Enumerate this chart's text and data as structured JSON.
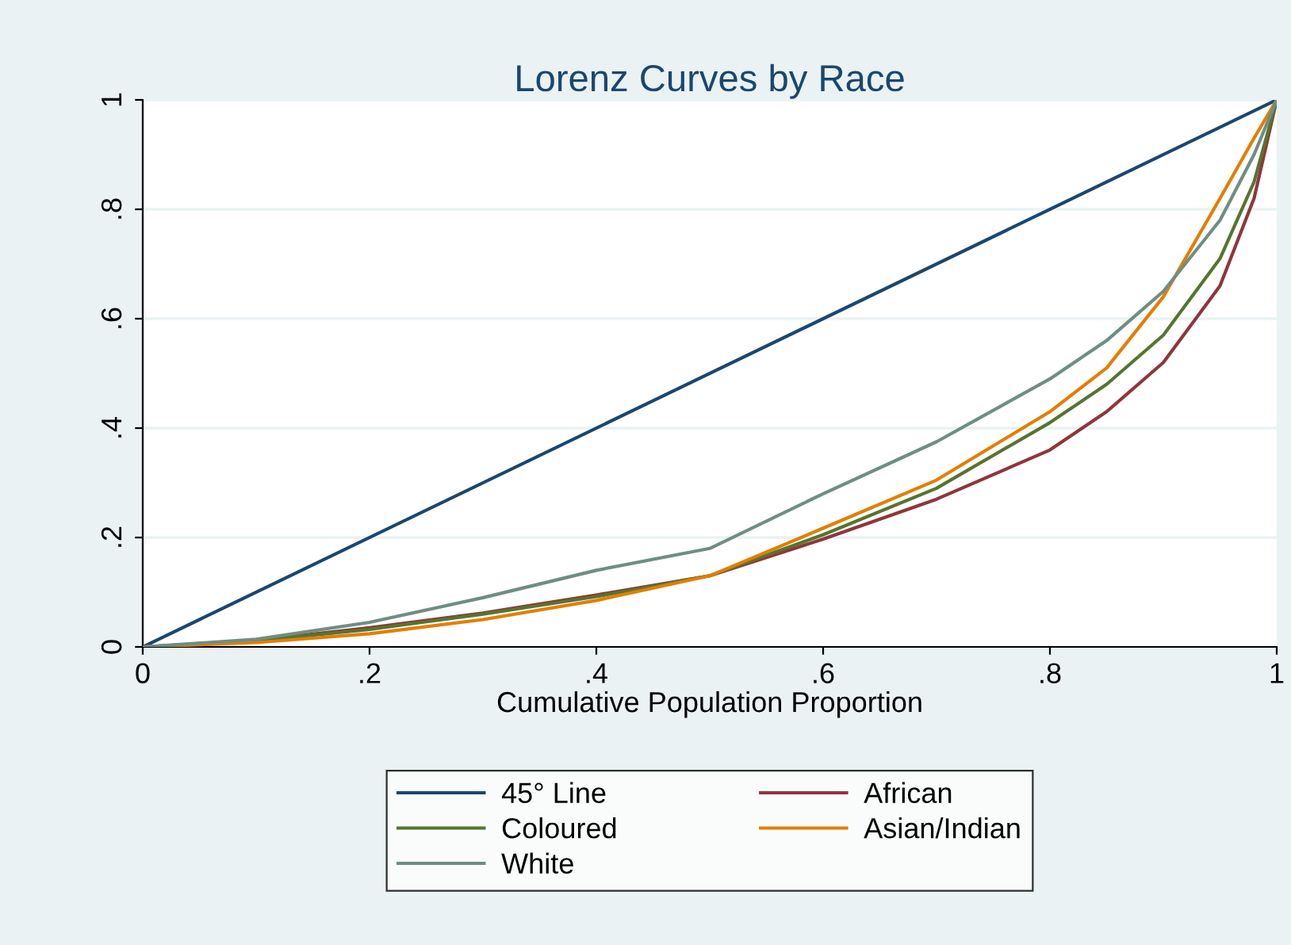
{
  "chart_data": {
    "type": "line",
    "title": "Lorenz Curves by Race",
    "xlabel": "Cumulative Population Proportion",
    "x": [
      0,
      0.1,
      0.2,
      0.3,
      0.4,
      0.5,
      0.6,
      0.7,
      0.8,
      0.85,
      0.9,
      0.95,
      0.98,
      1
    ],
    "series": [
      {
        "name": "45° Line",
        "color": "#1a476f",
        "x": [
          0,
          1
        ],
        "values": [
          0,
          1
        ]
      },
      {
        "name": "African",
        "color": "#90353b",
        "values": [
          0,
          0.012,
          0.035,
          0.062,
          0.095,
          0.13,
          0.197,
          0.27,
          0.36,
          0.43,
          0.52,
          0.66,
          0.82,
          1
        ]
      },
      {
        "name": "Coloured",
        "color": "#55752f",
        "values": [
          0,
          0.011,
          0.032,
          0.06,
          0.092,
          0.13,
          0.205,
          0.29,
          0.41,
          0.48,
          0.57,
          0.71,
          0.85,
          1
        ]
      },
      {
        "name": "Asian/Indian",
        "color": "#e37e00",
        "values": [
          0,
          0.008,
          0.024,
          0.05,
          0.085,
          0.13,
          0.217,
          0.305,
          0.43,
          0.51,
          0.64,
          0.82,
          0.93,
          1
        ]
      },
      {
        "name": "White",
        "color": "#6e8e84",
        "values": [
          0,
          0.014,
          0.045,
          0.09,
          0.14,
          0.18,
          0.28,
          0.375,
          0.49,
          0.56,
          0.65,
          0.78,
          0.9,
          1
        ]
      }
    ],
    "xlim": [
      0,
      1
    ],
    "ylim": [
      0,
      1
    ],
    "xticks": [
      {
        "value": 0,
        "label": "0"
      },
      {
        "value": 0.2,
        "label": ".2"
      },
      {
        "value": 0.4,
        "label": ".4"
      },
      {
        "value": 0.6,
        "label": ".6"
      },
      {
        "value": 0.8,
        "label": ".8"
      },
      {
        "value": 1,
        "label": "1"
      }
    ],
    "yticks": [
      {
        "value": 0,
        "label": "0"
      },
      {
        "value": 0.2,
        "label": ".2"
      },
      {
        "value": 0.4,
        "label": ".4"
      },
      {
        "value": 0.6,
        "label": ".6"
      },
      {
        "value": 0.8,
        "label": ".8"
      },
      {
        "value": 1,
        "label": "1"
      }
    ],
    "grid": "y",
    "legend": "bottom"
  }
}
